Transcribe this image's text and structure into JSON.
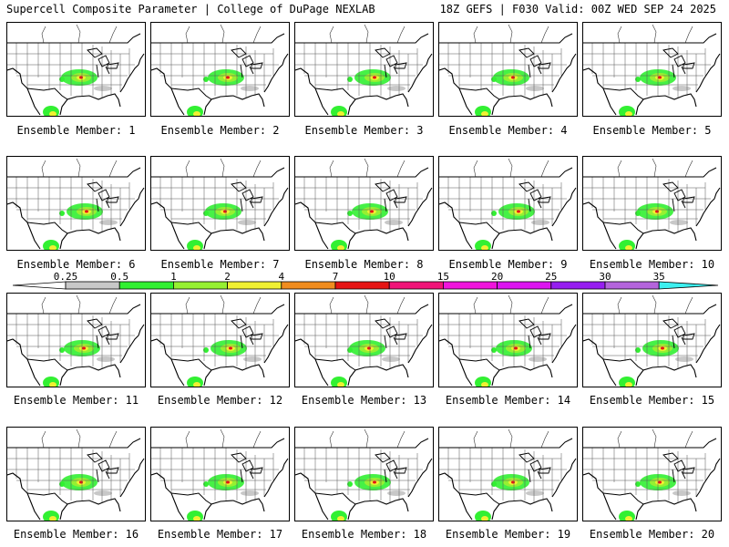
{
  "header": {
    "left": "Supercell Composite Parameter | College of DuPage NEXLAB",
    "right": "18Z GEFS | F030 Valid: 00Z WED SEP 24 2025"
  },
  "colorbar": {
    "labels": [
      "0.25",
      "0.5",
      "1",
      "2",
      "4",
      "7",
      "10",
      "15",
      "20",
      "25",
      "30",
      "35"
    ],
    "colors": [
      "#c8c8c8",
      "#32f032",
      "#96f032",
      "#f0f032",
      "#f08c1e",
      "#e61414",
      "#f01478",
      "#f014dc",
      "#dc14f0",
      "#961ef0",
      "#b464dc",
      "#3cf0f0"
    ],
    "under_color": "#ffffff"
  },
  "panels": [
    {
      "label": "Ensemble Member: 1"
    },
    {
      "label": "Ensemble Member: 2"
    },
    {
      "label": "Ensemble Member: 3"
    },
    {
      "label": "Ensemble Member: 4"
    },
    {
      "label": "Ensemble Member: 5"
    },
    {
      "label": "Ensemble Member: 6"
    },
    {
      "label": "Ensemble Member: 7"
    },
    {
      "label": "Ensemble Member: 8"
    },
    {
      "label": "Ensemble Member: 9"
    },
    {
      "label": "Ensemble Member: 10"
    },
    {
      "label": "Ensemble Member: 11"
    },
    {
      "label": "Ensemble Member: 12"
    },
    {
      "label": "Ensemble Member: 13"
    },
    {
      "label": "Ensemble Member: 14"
    },
    {
      "label": "Ensemble Member: 15"
    },
    {
      "label": "Ensemble Member: 16"
    },
    {
      "label": "Ensemble Member: 17"
    },
    {
      "label": "Ensemble Member: 18"
    },
    {
      "label": "Ensemble Member: 19"
    },
    {
      "label": "Ensemble Member: 20"
    }
  ]
}
